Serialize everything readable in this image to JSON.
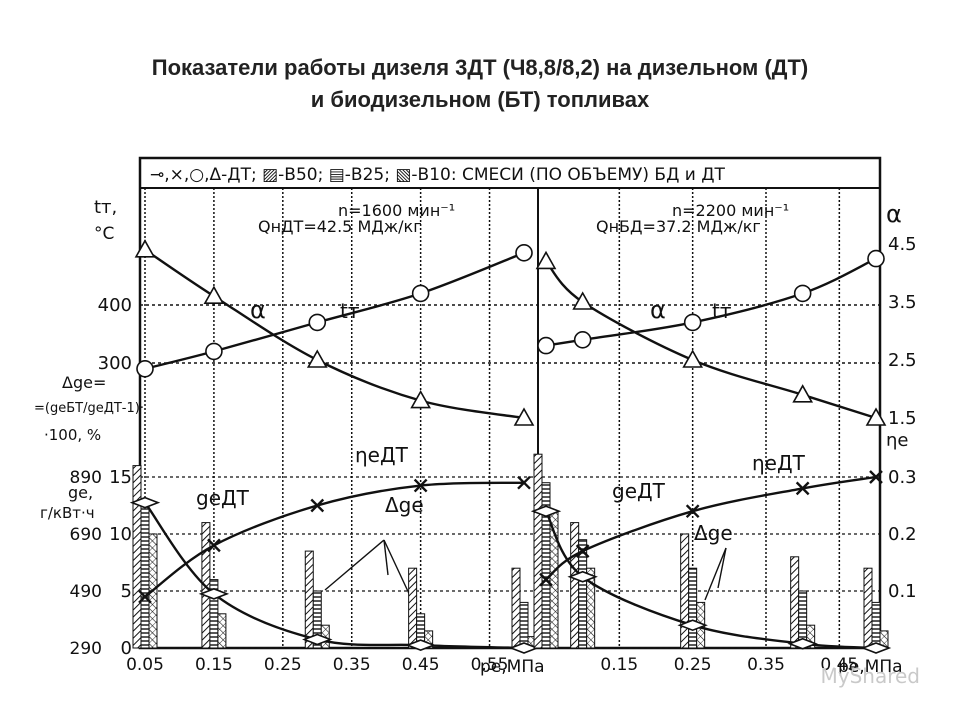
{
  "title": {
    "line1": "Показатели работы дизеля 3ДТ (Ч8,8/8,2) на дизельном (ДТ)",
    "line2": "и биодизельном (БТ) топливах"
  },
  "watermark": "MyShared",
  "chart_data": {
    "type": "line",
    "legend_text": "⊸,×,○,Δ-ДТ; ▨-В50; ▤-В25; ▧-В10: СМЕСИ (ПО ОБЪЕМУ) БД и ДТ",
    "colors": {
      "ink": "#111111",
      "paper": "#ffffff"
    },
    "left_axis_labels": {
      "tt": "tт,",
      "tt_unit": "°C",
      "dg_line1": "Δgе=",
      "dg_line2": "=(geБТ/geДТ-1)·",
      "dg_line3": "·100, %",
      "ge_line1": "gе,",
      "ge_line2": "г/кВт·ч"
    },
    "right_axis_labels": {
      "alpha": "α",
      "eta": "ηе"
    },
    "x_axis": {
      "label": "pe,МПа"
    },
    "tt_ticks": [
      {
        "label": "400",
        "value": 400
      },
      {
        "label": "300",
        "value": 300
      }
    ],
    "dg_ticks": [
      {
        "label": "15",
        "value": 15
      },
      {
        "label": "10",
        "value": 10
      },
      {
        "label": "5",
        "value": 5
      },
      {
        "label": "0",
        "value": 0
      }
    ],
    "ge_ticks": [
      {
        "label": "890",
        "value": 890
      },
      {
        "label": "690",
        "value": 690
      },
      {
        "label": "490",
        "value": 490
      },
      {
        "label": "290",
        "value": 290
      }
    ],
    "alpha_ticks": [
      {
        "label": "4.5",
        "value": 4.5
      },
      {
        "label": "3.5",
        "value": 3.5
      },
      {
        "label": "2.5",
        "value": 2.5
      },
      {
        "label": "1.5",
        "value": 1.5
      }
    ],
    "eta_ticks": [
      {
        "label": "0.3",
        "value": 0.3
      },
      {
        "label": "0.2",
        "value": 0.2
      },
      {
        "label": "0.1",
        "value": 0.1
      }
    ],
    "panels": [
      {
        "n_label": "n=1600 мин⁻¹",
        "q_label": "QнДТ=42.5 МДж/кг",
        "x_ticks": [
          {
            "label": "0.05",
            "value": 0.05
          },
          {
            "label": "0.15",
            "value": 0.15
          },
          {
            "label": "0.25",
            "value": 0.25
          },
          {
            "label": "0.35",
            "value": 0.35
          },
          {
            "label": "0.45",
            "value": 0.45
          },
          {
            "label": "0.55",
            "value": 0.55
          }
        ],
        "xlim": [
          0.05,
          0.6
        ],
        "curve_labels": {
          "alpha": "α",
          "tt": "tт",
          "eta": "ηеДТ",
          "ge": "geДТ",
          "dg": "Δge"
        },
        "series": [
          {
            "key": "tt",
            "marker": "circle",
            "x": [
              0.05,
              0.15,
              0.3,
              0.45,
              0.6
            ],
            "y": [
              290,
              320,
              370,
              420,
              490
            ]
          },
          {
            "key": "alpha",
            "marker": "triangle",
            "x": [
              0.05,
              0.15,
              0.3,
              0.45,
              0.6
            ],
            "y": [
              4.4,
              3.6,
              2.5,
              1.8,
              1.5
            ]
          },
          {
            "key": "eta",
            "marker": "x",
            "x": [
              0.05,
              0.15,
              0.3,
              0.45,
              0.6
            ],
            "y": [
              0.09,
              0.18,
              0.25,
              0.285,
              0.29
            ]
          },
          {
            "key": "ge",
            "marker": "diamond",
            "x": [
              0.05,
              0.15,
              0.3,
              0.45,
              0.6
            ],
            "y": [
              800,
              480,
              320,
              300,
              290
            ]
          }
        ],
        "dg_bars": [
          {
            "x": 0.05,
            "values": [
              16,
              12.5,
              10
            ]
          },
          {
            "x": 0.15,
            "values": [
              11,
              6,
              3
            ]
          },
          {
            "x": 0.3,
            "values": [
              8.5,
              5,
              2
            ]
          },
          {
            "x": 0.45,
            "values": [
              7,
              3,
              1.5
            ]
          },
          {
            "x": 0.6,
            "values": [
              7,
              4,
              1
            ]
          }
        ]
      },
      {
        "n_label": "n=2200 мин⁻¹",
        "q_label": "QнБД=37.2 МДж/кг",
        "x_ticks": [
          {
            "label": "0.15",
            "value": 0.15
          },
          {
            "label": "0.25",
            "value": 0.25
          },
          {
            "label": "0.35",
            "value": 0.35
          },
          {
            "label": "0.45",
            "value": 0.45
          }
        ],
        "xlim": [
          0.05,
          0.5
        ],
        "curve_labels": {
          "alpha": "α",
          "tt": "tт",
          "eta": "ηеДТ",
          "ge": "geДТ",
          "dg": "Δge"
        },
        "series": [
          {
            "key": "tt",
            "marker": "circle",
            "x": [
              0.05,
              0.1,
              0.25,
              0.4,
              0.5
            ],
            "y": [
              330,
              340,
              370,
              420,
              480
            ]
          },
          {
            "key": "alpha",
            "marker": "triangle",
            "x": [
              0.05,
              0.1,
              0.25,
              0.4,
              0.5
            ],
            "y": [
              4.2,
              3.5,
              2.5,
              1.9,
              1.5
            ]
          },
          {
            "key": "eta",
            "marker": "x",
            "x": [
              0.05,
              0.1,
              0.25,
              0.4,
              0.5
            ],
            "y": [
              0.12,
              0.17,
              0.24,
              0.28,
              0.3
            ]
          },
          {
            "key": "ge",
            "marker": "diamond",
            "x": [
              0.05,
              0.1,
              0.25,
              0.4,
              0.5
            ],
            "y": [
              770,
              540,
              370,
              305,
              290
            ]
          }
        ],
        "dg_bars": [
          {
            "x": 0.05,
            "values": [
              17,
              14.5,
              12
            ]
          },
          {
            "x": 0.1,
            "values": [
              11,
              9.5,
              7
            ]
          },
          {
            "x": 0.25,
            "values": [
              10,
              7,
              4
            ]
          },
          {
            "x": 0.4,
            "values": [
              8,
              5,
              2
            ]
          },
          {
            "x": 0.5,
            "values": [
              7,
              4,
              1.5
            ]
          }
        ]
      }
    ]
  }
}
